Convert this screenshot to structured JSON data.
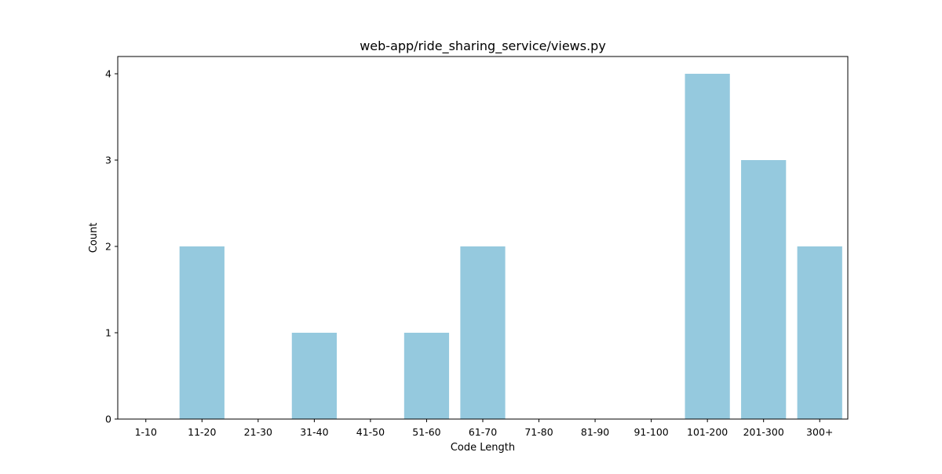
{
  "chart_data": {
    "type": "bar",
    "title": "web-app/ride_sharing_service/views.py",
    "xlabel": "Code Length",
    "ylabel": "Count",
    "categories": [
      "1-10",
      "11-20",
      "21-30",
      "31-40",
      "41-50",
      "51-60",
      "61-70",
      "71-80",
      "81-90",
      "91-100",
      "101-200",
      "201-300",
      "300+"
    ],
    "values": [
      0,
      2,
      0,
      1,
      0,
      1,
      2,
      0,
      0,
      0,
      4,
      3,
      2
    ],
    "ylim": [
      0,
      4.2
    ],
    "yticks": [
      "0",
      "1",
      "2",
      "3",
      "4"
    ],
    "grid": false,
    "bar_color": "#95c9de"
  }
}
